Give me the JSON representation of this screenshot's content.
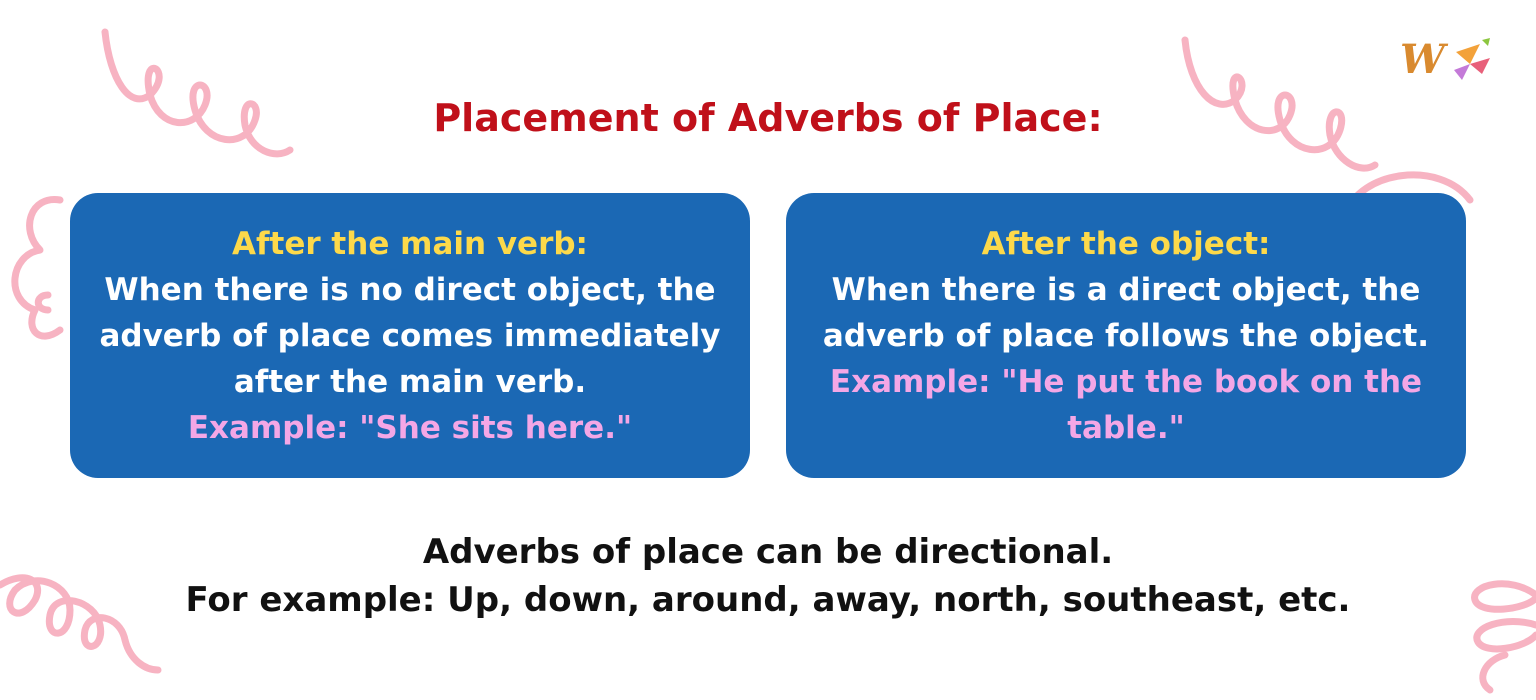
{
  "title": "Placement of Adverbs of Place:",
  "cards": [
    {
      "heading": "After the main verb:",
      "body": "When there is no direct object, the adverb of place comes immediately after the main verb.",
      "example": "Example: \"She sits here.\""
    },
    {
      "heading": "After the object:",
      "body": "When there is a direct object, the adverb of place follows the object.",
      "example": "Example: \"He put the book on the table.\""
    }
  ],
  "footer": {
    "line1": "Adverbs of place can be directional.",
    "line2": "For example: Up, down, around, away, north, southeast, etc."
  },
  "logo": {
    "letter": "W"
  },
  "colors": {
    "title": "#c0101a",
    "card_bg": "#1b68b4",
    "heading": "#fdd94a",
    "example": "#f4a7e6",
    "decor": "#f7b3c2"
  }
}
